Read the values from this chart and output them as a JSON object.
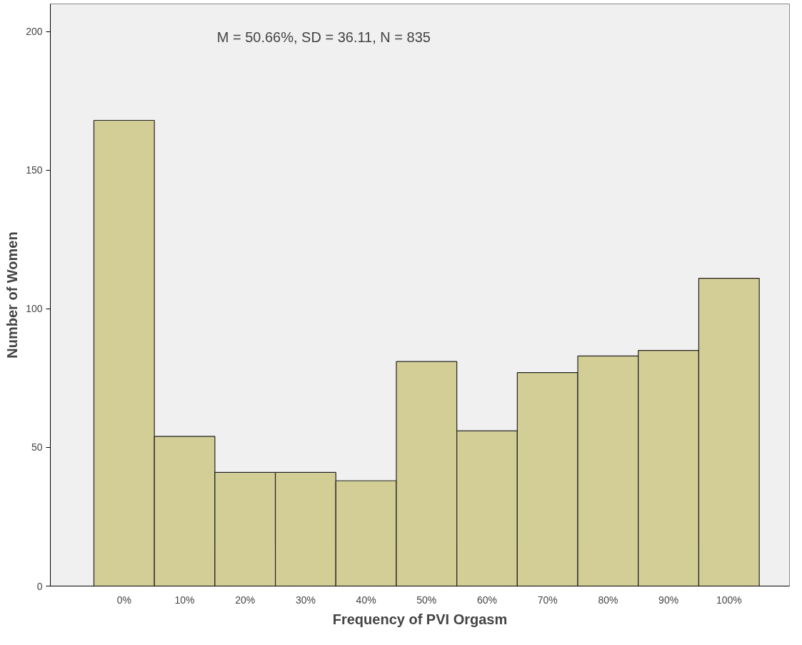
{
  "chart_data": {
    "type": "bar",
    "xlabel": "Frequency of PVI Orgasm",
    "ylabel": "Number of Women",
    "annotations": [
      "M = 50.66%, SD = 36.11, N = 835"
    ],
    "categories": [
      "0%",
      "10%",
      "20%",
      "30%",
      "40%",
      "50%",
      "60%",
      "70%",
      "80%",
      "90%",
      "100%"
    ],
    "values": [
      168,
      54,
      41,
      41,
      38,
      81,
      56,
      77,
      83,
      85,
      111
    ],
    "color": "#d3ce96",
    "ylim": [
      0,
      210
    ],
    "yticks": [
      0,
      50,
      100,
      150,
      200
    ],
    "grid": false
  }
}
